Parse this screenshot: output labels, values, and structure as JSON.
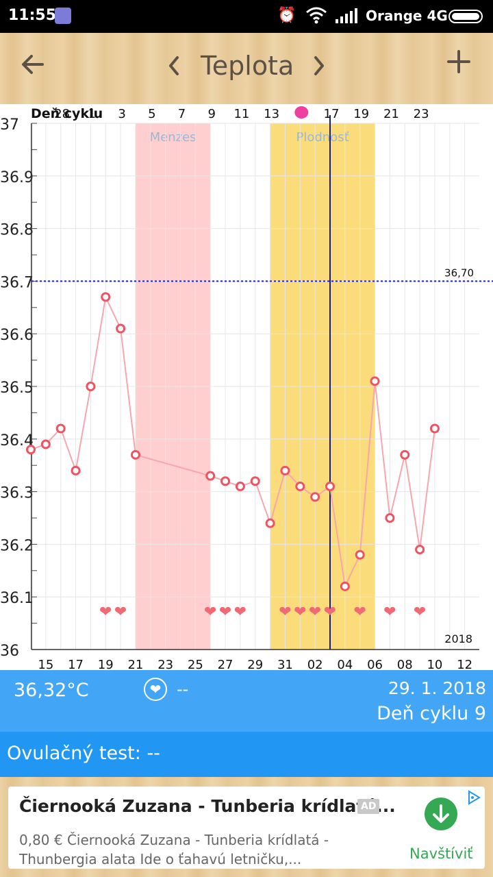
{
  "status_bar": {
    "time": "11:55",
    "carrier": "Orange 4G"
  },
  "toolbar": {
    "title": "Teplota",
    "back_icon": "arrow-left",
    "prev_icon": "chevron-left",
    "next_icon": "chevron-right",
    "add_icon": "plus"
  },
  "chart_data": {
    "type": "line",
    "top_axis_label": "Deň cyklu",
    "top_ticks": [
      "28",
      "1",
      "3",
      "5",
      "7",
      "9",
      "11",
      "13",
      "",
      "17",
      "19",
      "21",
      "23"
    ],
    "bottom_ticks": [
      "15",
      "17",
      "19",
      "21",
      "23",
      "25",
      "27",
      "29",
      "31",
      "02",
      "04",
      "06",
      "08",
      "10",
      "12"
    ],
    "y_ticks": [
      "37",
      "36.9",
      "36.8",
      "36.7",
      "36.6",
      "36.5",
      "36.4",
      "36.3",
      "36.2",
      "36.1",
      "36"
    ],
    "ylim": [
      36.0,
      37.0
    ],
    "year_label": "2018",
    "threshold": {
      "value": 36.7,
      "label": "36,70",
      "color": "#1f1fd0"
    },
    "bands": [
      {
        "label": "Menzes",
        "start_day": 21,
        "end_day": 26,
        "color": "#ffcfcf",
        "label_color": "#9ab7d8"
      },
      {
        "label": "Plodnosť",
        "start_day": 30,
        "end_day": 37,
        "color": "#fbdc7b",
        "label_color": "#9ab7d8"
      }
    ],
    "current_day": 34,
    "ovulation_marker_day": 34,
    "series": [
      {
        "x": [
          14,
          15,
          16,
          17,
          18,
          19,
          20,
          21,
          26,
          27,
          28,
          29,
          30,
          31,
          32,
          33,
          34,
          35,
          36,
          37,
          38,
          39,
          40,
          41
        ],
        "y": [
          36.38,
          36.39,
          36.42,
          36.34,
          36.5,
          36.67,
          36.61,
          36.37,
          36.33,
          36.32,
          36.31,
          36.32,
          36.24,
          36.34,
          36.31,
          36.29,
          36.31,
          36.12,
          36.18,
          36.51,
          36.25,
          36.37,
          36.19,
          36.42
        ],
        "color": "#f06070"
      }
    ],
    "heart_days": [
      19,
      20,
      26,
      27,
      28,
      31,
      32,
      33,
      34,
      36,
      38,
      40
    ],
    "colors": {
      "line": "#f7a6ad",
      "marker": "#ef5361",
      "heart": "#f06a73",
      "grid": "#e6e6e6"
    }
  },
  "info": {
    "temperature": "36,32°C",
    "sex_value": "--",
    "date": "29. 1. 2018",
    "cycle_day": "Deň cyklu 9"
  },
  "ovulation": {
    "label": "Ovulačný test: --"
  },
  "ad": {
    "title": "Čiernooká Zuzana - Tunberia krídlatá...",
    "badge": "AD",
    "line1": "0,80 € Čiernooká Zuzana - Tunberia krídlatá -",
    "line2": "Thunbergia alata Ide o ťahavú letničku,...",
    "button_label": "Navštíviť"
  }
}
